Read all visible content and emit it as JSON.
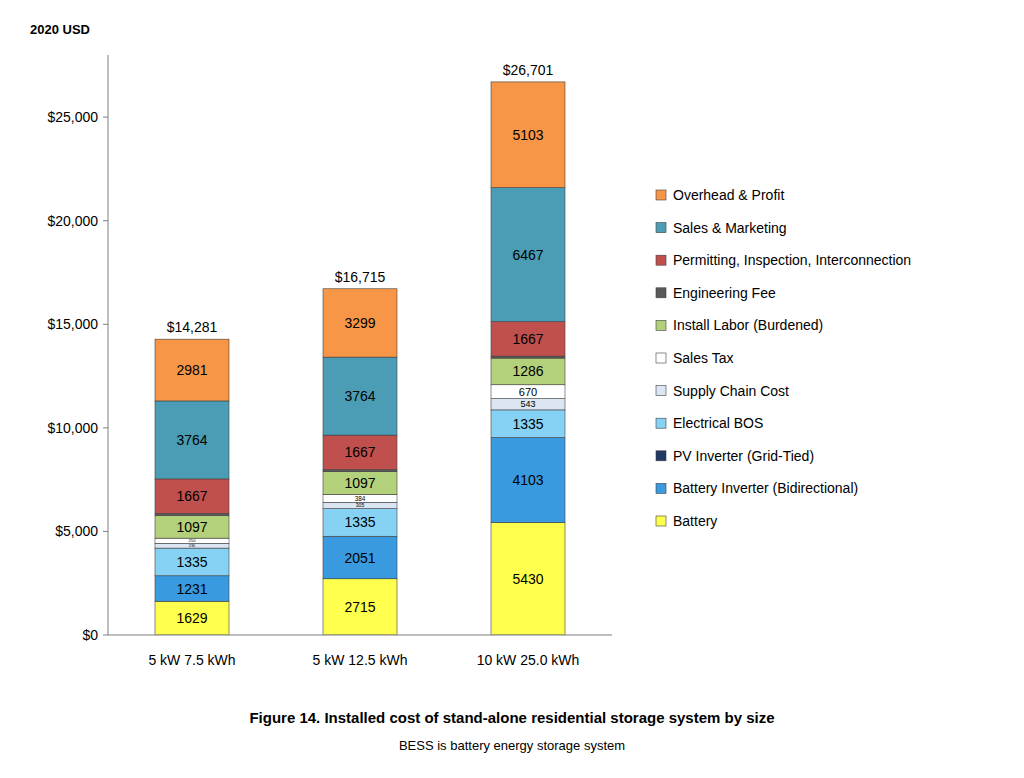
{
  "chart_data": {
    "type": "bar",
    "stacked": true,
    "data_labels": true,
    "grid": false,
    "legend": "right",
    "title": "Figure 14. Installed cost of stand-alone residential storage system by size",
    "subtitle": "BESS is battery energy storage system",
    "y_label": "2020 USD",
    "categories": [
      "5 kW 7.5 kWh",
      "5 kW 12.5 kWh",
      "10 kW 25.0 kWh"
    ],
    "totals": [
      14281,
      16715,
      26701
    ],
    "total_labels": [
      "$14,281",
      "$16,715",
      "$26,701"
    ],
    "ylim": [
      0,
      28000
    ],
    "yticks": [
      {
        "value": 0,
        "label": "$0"
      },
      {
        "value": 5000,
        "label": "$5,000"
      },
      {
        "value": 10000,
        "label": "$10,000"
      },
      {
        "value": 15000,
        "label": "$15,000"
      },
      {
        "value": 20000,
        "label": "$20,000"
      },
      {
        "value": 25000,
        "label": "$25,000"
      }
    ],
    "series": [
      {
        "name": "Battery",
        "color": "#ffff4d",
        "values": [
          1629,
          2715,
          5430
        ]
      },
      {
        "name": "Battery Inverter (Bidirectional)",
        "color": "#3a9ae0",
        "values": [
          1231,
          2051,
          4103
        ]
      },
      {
        "name": "PV Inverter (Grid-Tied)",
        "color": "#1f3864",
        "values": [
          0,
          0,
          0
        ]
      },
      {
        "name": "Electrical BOS",
        "color": "#86d2f4",
        "values": [
          1335,
          1335,
          1335
        ]
      },
      {
        "name": "Supply Chain Cost",
        "color": "#dce6f2",
        "values": [
          230,
          305,
          543
        ]
      },
      {
        "name": "Sales Tax",
        "color": "#ffffff",
        "values": [
          250,
          384,
          670
        ]
      },
      {
        "name": "Install Labor (Burdened)",
        "color": "#b3d07a",
        "values": [
          1097,
          1097,
          1286
        ]
      },
      {
        "name": "Engineering Fee",
        "color": "#595959",
        "values": [
          97,
          98,
          97
        ]
      },
      {
        "name": "Permitting, Inspection, Interconnection",
        "color": "#c0504d",
        "values": [
          1667,
          1667,
          1667
        ]
      },
      {
        "name": "Sales & Marketing",
        "color": "#4a9db5",
        "values": [
          3764,
          3764,
          6467
        ]
      },
      {
        "name": "Overhead & Profit",
        "color": "#f79646",
        "values": [
          2981,
          3299,
          5103
        ]
      }
    ]
  }
}
